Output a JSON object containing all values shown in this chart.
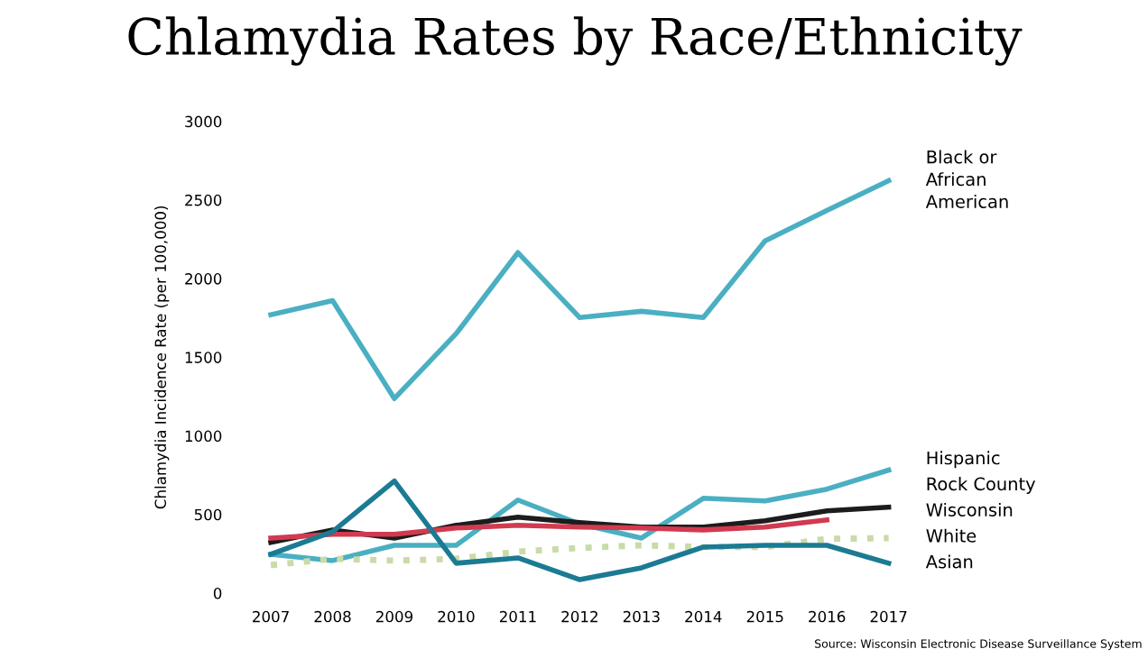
{
  "chart_data": {
    "type": "line",
    "title": "Chlamydia Rates by Race/Ethnicity",
    "ylabel": "Chlamydia Incidence Rate (per 100,000)",
    "categories": [
      "2007",
      "2008",
      "2009",
      "2010",
      "2011",
      "2012",
      "2013",
      "2014",
      "2015",
      "2016",
      "2017"
    ],
    "series": [
      {
        "name": "Black or African American",
        "color": "#4aafc2",
        "values": [
          1770,
          1860,
          1237,
          1650,
          2165,
          1752,
          1792,
          1752,
          2240,
          2433,
          2622
        ]
      },
      {
        "name": "Hispanic",
        "color": "#4aafc2",
        "values": [
          247,
          207,
          304,
          304,
          592,
          440,
          350,
          603,
          586,
          661,
          782
        ]
      },
      {
        "name": "Rock County",
        "color": "#1c1c1c",
        "values": [
          322,
          402,
          350,
          431,
          483,
          448,
          420,
          420,
          460,
          523,
          546
        ]
      },
      {
        "name": "Wisconsin",
        "color": "#d23a50",
        "values": [
          350,
          374,
          374,
          414,
          431,
          420,
          414,
          402,
          420,
          465,
          null
        ]
      },
      {
        "name": "White",
        "color": "#c9dba8",
        "line_style": "dotted",
        "values": [
          178,
          218,
          207,
          218,
          264,
          287,
          304,
          293,
          293,
          345,
          350
        ]
      },
      {
        "name": "Asian",
        "color": "#1b7b93",
        "values": [
          247,
          390,
          713,
          190,
          224,
          86,
          161,
          293,
          304,
          304,
          190
        ]
      }
    ],
    "ylim": [
      0,
      3000
    ],
    "yticks": [
      0,
      500,
      1000,
      1500,
      2000,
      2500,
      3000
    ],
    "grid": false,
    "legend": false,
    "annotations": [
      "Source: Wisconsin Electronic Disease Surveillance System"
    ]
  }
}
